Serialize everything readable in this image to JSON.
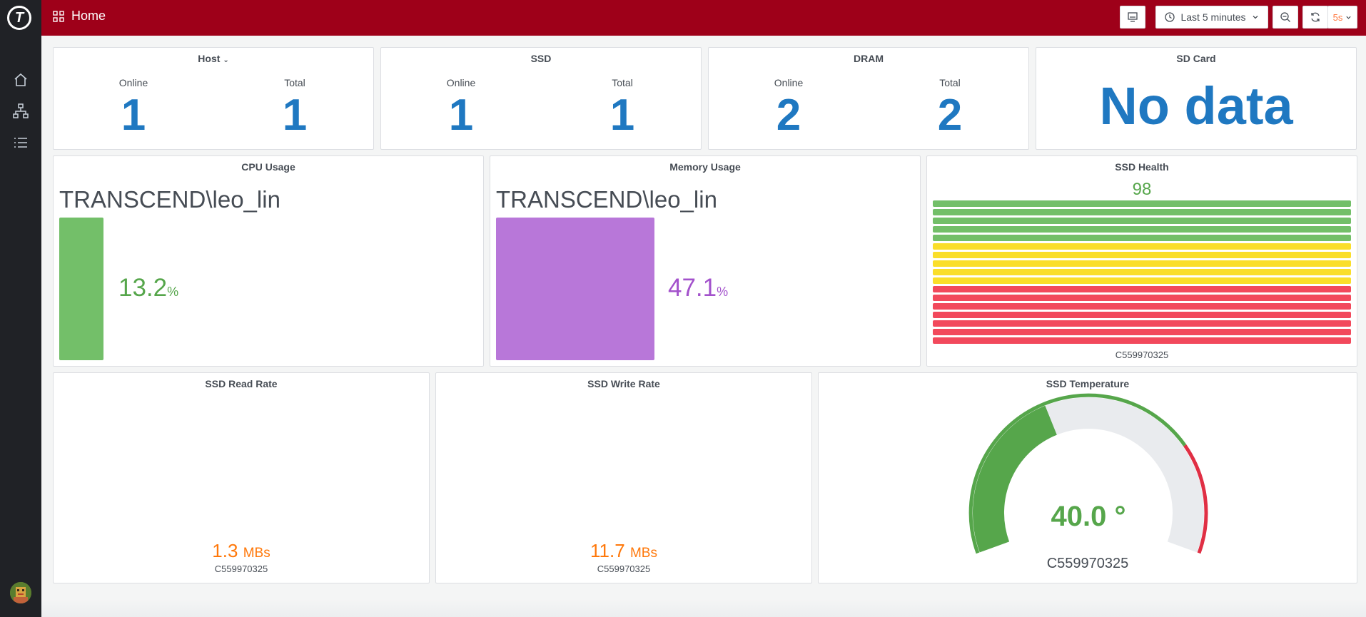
{
  "header": {
    "title": "Home",
    "time_range": "Last 5 minutes",
    "refresh_interval": "5s"
  },
  "sidebar": {
    "items": [
      {
        "icon": "home-icon"
      },
      {
        "icon": "sitemap-icon"
      },
      {
        "icon": "list-icon"
      }
    ]
  },
  "stats": {
    "host": {
      "title": "Host",
      "online_label": "Online",
      "total_label": "Total",
      "online": "1",
      "total": "1"
    },
    "ssd": {
      "title": "SSD",
      "online_label": "Online",
      "total_label": "Total",
      "online": "1",
      "total": "1"
    },
    "dram": {
      "title": "DRAM",
      "online_label": "Online",
      "total_label": "Total",
      "online": "2",
      "total": "2"
    },
    "sdcard": {
      "title": "SD Card",
      "value": "No data"
    }
  },
  "cpu": {
    "title": "CPU Usage",
    "name": "TRANSCEND\\leo_lin",
    "value": "13.2",
    "unit": "%",
    "color": "#73bf69"
  },
  "memory": {
    "title": "Memory Usage",
    "name": "TRANSCEND\\leo_lin",
    "value": "47.1",
    "unit": "%",
    "color": "#b877d9"
  },
  "ssd_health": {
    "title": "SSD Health",
    "value": "98",
    "device": "C559970325",
    "colors": {
      "green": "#73bf69",
      "yellow": "#fade2a",
      "red": "#f2495c"
    }
  },
  "ssd_read": {
    "title": "SSD Read Rate",
    "value": "1.3",
    "unit": "MBs",
    "device": "C559970325"
  },
  "ssd_write": {
    "title": "SSD Write Rate",
    "value": "11.7",
    "unit": "MBs",
    "device": "C559970325"
  },
  "ssd_temp": {
    "title": "SSD Temperature",
    "value": "40.0 °",
    "device": "C559970325",
    "min": 0,
    "max": 100,
    "reading": 40
  }
}
